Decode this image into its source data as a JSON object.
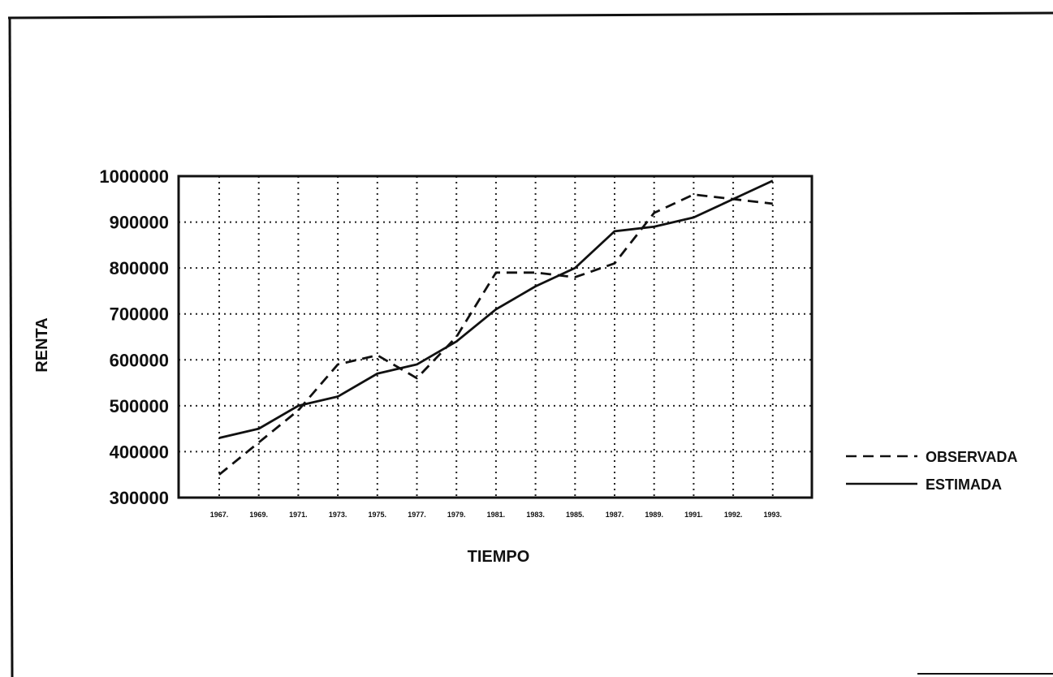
{
  "chart_data": {
    "type": "line",
    "title": "",
    "xlabel": "TIEMPO",
    "ylabel": "RENTA",
    "ylim": [
      300000,
      1000000
    ],
    "yticks": [
      "1000000",
      "900000",
      "800000",
      "700000",
      "600000",
      "500000",
      "400000",
      "300000"
    ],
    "categories": [
      "1967.",
      "1969.",
      "1971.",
      "1973.",
      "1975.",
      "1977.",
      "1979.",
      "1981.",
      "1983.",
      "1985.",
      "1987.",
      "1989.",
      "1991.",
      "1992.",
      "1993."
    ],
    "grid": true,
    "legend_position": "right",
    "series": [
      {
        "name": "OBSERVADA",
        "style": "dashed",
        "values": [
          350000,
          420000,
          490000,
          590000,
          610000,
          560000,
          650000,
          790000,
          790000,
          780000,
          810000,
          920000,
          960000,
          950000,
          940000
        ]
      },
      {
        "name": "ESTIMADA",
        "style": "solid",
        "values": [
          430000,
          450000,
          500000,
          520000,
          570000,
          590000,
          640000,
          710000,
          760000,
          800000,
          880000,
          890000,
          910000,
          950000,
          990000
        ]
      }
    ]
  }
}
